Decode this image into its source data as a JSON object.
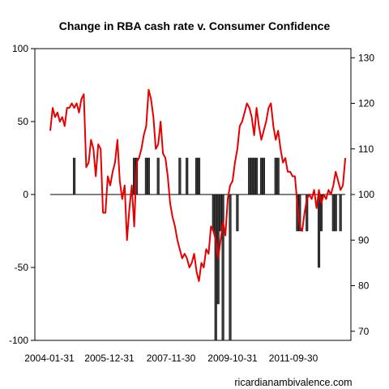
{
  "chart_data": {
    "type": "bar+line",
    "title": "Change in RBA cash rate v. Consumer Confidence",
    "credit": "ricardianambivalence.com",
    "x_tick_labels": [
      "2004-01-31",
      "2005-12-31",
      "2007-11-30",
      "2009-10-31",
      "2011-09-30"
    ],
    "left_axis": {
      "range": [
        -100,
        100
      ],
      "ticks": [
        -100,
        -50,
        0,
        50,
        100
      ],
      "tick_labels": [
        "-100",
        "-50",
        "0",
        "50",
        "100"
      ]
    },
    "right_axis": {
      "range": [
        68,
        132
      ],
      "ticks": [
        70,
        80,
        90,
        100,
        110,
        120,
        130
      ],
      "tick_labels": [
        "70",
        "80",
        "90",
        "100",
        "110",
        "120",
        "130"
      ]
    },
    "bar_color": "#3a3a3a",
    "line_color": "#e60000",
    "cash_rate_change_bps": [
      {
        "month": 10,
        "value": 25
      },
      {
        "month": 35,
        "value": 25
      },
      {
        "month": 36,
        "value": 25
      },
      {
        "month": 40,
        "value": 25
      },
      {
        "month": 41,
        "value": 25
      },
      {
        "month": 45,
        "value": 25
      },
      {
        "month": 54,
        "value": 25
      },
      {
        "month": 57,
        "value": 25
      },
      {
        "month": 61,
        "value": 25
      },
      {
        "month": 62,
        "value": 25
      },
      {
        "month": 68,
        "value": -25
      },
      {
        "month": 69,
        "value": -100
      },
      {
        "month": 70,
        "value": -75
      },
      {
        "month": 71,
        "value": -25
      },
      {
        "month": 72,
        "value": -100
      },
      {
        "month": 75,
        "value": -100
      },
      {
        "month": 78,
        "value": -25
      },
      {
        "month": 83,
        "value": 25
      },
      {
        "month": 84,
        "value": 25
      },
      {
        "month": 85,
        "value": 25
      },
      {
        "month": 86,
        "value": 25
      },
      {
        "month": 88,
        "value": 25
      },
      {
        "month": 89,
        "value": 25
      },
      {
        "month": 94,
        "value": 25
      },
      {
        "month": 95,
        "value": 25
      },
      {
        "month": 103,
        "value": -25
      },
      {
        "month": 104,
        "value": -25
      },
      {
        "month": 107,
        "value": -25
      },
      {
        "month": 112,
        "value": -50
      },
      {
        "month": 113,
        "value": -25
      },
      {
        "month": 118,
        "value": -25
      },
      {
        "month": 119,
        "value": -25
      },
      {
        "month": 121,
        "value": -25
      }
    ],
    "consumer_confidence": [
      114,
      119,
      117,
      118,
      116,
      117,
      115,
      119,
      119,
      120,
      119,
      120,
      118,
      121,
      122,
      106,
      107,
      112,
      110,
      104,
      111,
      110,
      96,
      96,
      104,
      102,
      105,
      107,
      112,
      103,
      99,
      102,
      90,
      97,
      102,
      93,
      107,
      108,
      110,
      113,
      115,
      123,
      121,
      117,
      110,
      111,
      116,
      109,
      108,
      104,
      98,
      95,
      93,
      90,
      88,
      86,
      87,
      86,
      84,
      85,
      87,
      83,
      81,
      85,
      84,
      88,
      87,
      93,
      92,
      90,
      86,
      90,
      94,
      91,
      99,
      102,
      103,
      107,
      110,
      115,
      116,
      118,
      120,
      119,
      117,
      113,
      119,
      115,
      112,
      114,
      116,
      119,
      120,
      115,
      112,
      114,
      110,
      107,
      108,
      105,
      105,
      104,
      104,
      98,
      93,
      92,
      96,
      99,
      100,
      99,
      101,
      97,
      101,
      98,
      100,
      99,
      101,
      100,
      102,
      105,
      103,
      101,
      102,
      108
    ]
  }
}
